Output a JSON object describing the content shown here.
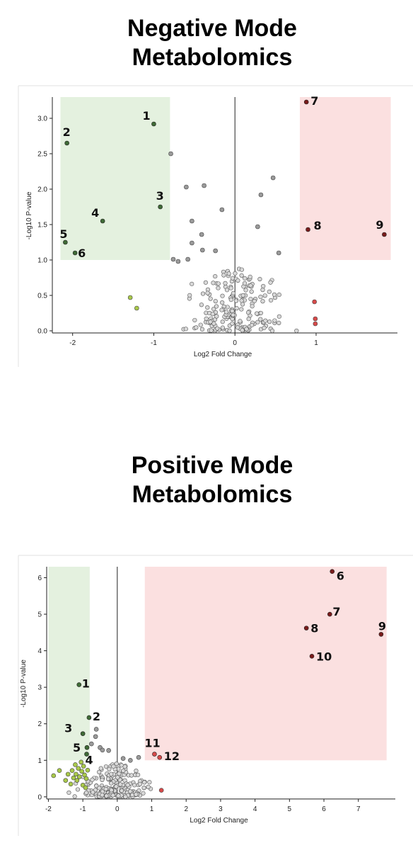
{
  "colors": {
    "down_region": "#e4f1df",
    "up_region": "#fbe0e0",
    "down_sig": "#3f6b36",
    "down_nonsig": "#a9c94a",
    "up_sig": "#7a1b1b",
    "up_nonsig": "#d84a4a",
    "nonsig": "#d8d8d8",
    "nonsig_mid": "#9a9a9a",
    "outline": "#333333"
  },
  "chart_data": [
    {
      "type": "scatter",
      "title": "Negative Mode Metabolomics",
      "xlabel": "Log2 Fold Change",
      "ylabel": "-Log10 P-value",
      "xlim": [
        -2.25,
        1.95
      ],
      "ylim": [
        -0.05,
        3.3
      ],
      "xticks": [
        -2,
        -1,
        0,
        1
      ],
      "yticks": [
        0.0,
        0.5,
        1.0,
        1.5,
        2.0,
        2.5,
        3.0
      ],
      "ytick_labels": [
        "0.0",
        "0.5",
        "1.0",
        "1.5",
        "2.0",
        "2.5",
        "3.0"
      ],
      "grid": false,
      "regions": [
        {
          "name": "down",
          "x": [
            -2.15,
            -0.8
          ],
          "y": [
            1.0,
            3.3
          ]
        },
        {
          "name": "up",
          "x": [
            0.8,
            1.92
          ],
          "y": [
            1.0,
            3.3
          ]
        }
      ],
      "labeled_points": [
        {
          "label": "1",
          "x": -1.0,
          "y": 2.92,
          "group": "down_sig"
        },
        {
          "label": "2",
          "x": -2.07,
          "y": 2.65,
          "group": "down_sig"
        },
        {
          "label": "3",
          "x": -0.92,
          "y": 1.75,
          "group": "down_sig"
        },
        {
          "label": "4",
          "x": -1.63,
          "y": 1.55,
          "group": "down_sig"
        },
        {
          "label": "5",
          "x": -2.09,
          "y": 1.25,
          "group": "down_sig"
        },
        {
          "label": "6",
          "x": -1.97,
          "y": 1.1,
          "group": "down_sig"
        },
        {
          "label": "7",
          "x": 0.88,
          "y": 3.23,
          "group": "up_sig"
        },
        {
          "label": "8",
          "x": 0.9,
          "y": 1.43,
          "group": "up_sig"
        },
        {
          "label": "9",
          "x": 1.84,
          "y": 1.36,
          "group": "up_sig"
        }
      ],
      "other_points": [
        {
          "x": -1.29,
          "y": 0.47,
          "group": "down_nonsig"
        },
        {
          "x": -1.21,
          "y": 0.32,
          "group": "down_nonsig"
        },
        {
          "x": 0.98,
          "y": 0.41,
          "group": "up_nonsig"
        },
        {
          "x": 0.99,
          "y": 0.17,
          "group": "up_nonsig"
        },
        {
          "x": 0.99,
          "y": 0.1,
          "group": "up_nonsig"
        },
        {
          "x": -0.79,
          "y": 2.5,
          "group": "nonsig_mid"
        },
        {
          "x": -0.6,
          "y": 2.03,
          "group": "nonsig_mid"
        },
        {
          "x": -0.38,
          "y": 2.05,
          "group": "nonsig_mid"
        },
        {
          "x": -0.16,
          "y": 1.71,
          "group": "nonsig_mid"
        },
        {
          "x": 0.47,
          "y": 2.16,
          "group": "nonsig_mid"
        },
        {
          "x": 0.32,
          "y": 1.92,
          "group": "nonsig_mid"
        },
        {
          "x": 0.28,
          "y": 1.47,
          "group": "nonsig_mid"
        },
        {
          "x": 0.54,
          "y": 1.1,
          "group": "nonsig_mid"
        },
        {
          "x": -0.53,
          "y": 1.55,
          "group": "nonsig_mid"
        },
        {
          "x": -0.41,
          "y": 1.36,
          "group": "nonsig_mid"
        },
        {
          "x": -0.4,
          "y": 1.14,
          "group": "nonsig_mid"
        },
        {
          "x": -0.24,
          "y": 1.13,
          "group": "nonsig_mid"
        },
        {
          "x": -0.53,
          "y": 1.24,
          "group": "nonsig_mid"
        },
        {
          "x": -0.76,
          "y": 1.01,
          "group": "nonsig_mid"
        },
        {
          "x": -0.7,
          "y": 0.98,
          "group": "nonsig_mid"
        },
        {
          "x": -0.58,
          "y": 1.01,
          "group": "nonsig_mid"
        }
      ]
    },
    {
      "type": "scatter",
      "title": "Positive Mode Metabolomics",
      "xlabel": "Log2 Fold Change",
      "ylabel": "-Log10 P-value",
      "xlim": [
        -2.05,
        7.95
      ],
      "ylim": [
        -0.1,
        6.3
      ],
      "xticks": [
        -2,
        -1,
        0,
        1,
        2,
        3,
        4,
        5,
        6,
        7
      ],
      "yticks": [
        0,
        1,
        2,
        3,
        4,
        5,
        6
      ],
      "ytick_labels": [
        "0",
        "1",
        "2",
        "3",
        "4",
        "5",
        "6"
      ],
      "grid": false,
      "regions": [
        {
          "name": "down",
          "x": [
            -2.0,
            -0.8
          ],
          "y": [
            1.0,
            6.3
          ]
        },
        {
          "name": "up",
          "x": [
            0.8,
            7.82
          ],
          "y": [
            1.0,
            6.3
          ]
        }
      ],
      "labeled_points": [
        {
          "label": "1",
          "x": -1.11,
          "y": 3.07,
          "group": "down_sig"
        },
        {
          "label": "2",
          "x": -0.82,
          "y": 2.17,
          "group": "down_sig"
        },
        {
          "label": "3",
          "x": -1.0,
          "y": 1.73,
          "group": "down_sig"
        },
        {
          "label": "4",
          "x": -0.89,
          "y": 1.17,
          "group": "down_sig"
        },
        {
          "label": "5",
          "x": -0.88,
          "y": 1.35,
          "group": "down_sig"
        },
        {
          "label": "6",
          "x": 6.24,
          "y": 6.17,
          "group": "up_sig"
        },
        {
          "label": "7",
          "x": 6.17,
          "y": 5.0,
          "group": "up_sig"
        },
        {
          "label": "8",
          "x": 5.49,
          "y": 4.62,
          "group": "up_sig"
        },
        {
          "label": "9",
          "x": 7.66,
          "y": 4.45,
          "group": "up_sig"
        },
        {
          "label": "10",
          "x": 5.65,
          "y": 3.85,
          "group": "up_sig"
        },
        {
          "label": "11",
          "x": 1.08,
          "y": 1.17,
          "group": "up_nonsig"
        },
        {
          "label": "12",
          "x": 1.23,
          "y": 1.08,
          "group": "up_nonsig"
        }
      ],
      "other_points": [
        {
          "x": 1.28,
          "y": 0.18,
          "group": "up_nonsig"
        },
        {
          "x": -0.61,
          "y": 1.85,
          "group": "nonsig_mid"
        },
        {
          "x": -0.63,
          "y": 1.65,
          "group": "nonsig_mid"
        },
        {
          "x": -0.75,
          "y": 1.45,
          "group": "nonsig_mid"
        },
        {
          "x": -0.5,
          "y": 1.35,
          "group": "nonsig_mid"
        },
        {
          "x": -0.43,
          "y": 1.28,
          "group": "nonsig_mid"
        },
        {
          "x": -0.25,
          "y": 1.27,
          "group": "nonsig_mid"
        },
        {
          "x": 0.17,
          "y": 1.05,
          "group": "nonsig_mid"
        },
        {
          "x": 0.38,
          "y": 1.0,
          "group": "nonsig_mid"
        },
        {
          "x": 0.62,
          "y": 1.08,
          "group": "nonsig_mid"
        },
        {
          "x": -1.85,
          "y": 0.58,
          "group": "down_nonsig"
        },
        {
          "x": -1.68,
          "y": 0.72,
          "group": "down_nonsig"
        },
        {
          "x": -1.5,
          "y": 0.45,
          "group": "down_nonsig"
        },
        {
          "x": -1.43,
          "y": 0.62,
          "group": "down_nonsig"
        },
        {
          "x": -1.35,
          "y": 0.35,
          "group": "down_nonsig"
        },
        {
          "x": -1.31,
          "y": 0.72,
          "group": "down_nonsig"
        },
        {
          "x": -1.27,
          "y": 0.52,
          "group": "down_nonsig"
        },
        {
          "x": -1.22,
          "y": 0.88,
          "group": "down_nonsig"
        },
        {
          "x": -1.2,
          "y": 0.62,
          "group": "down_nonsig"
        },
        {
          "x": -1.17,
          "y": 0.45,
          "group": "down_nonsig"
        },
        {
          "x": -1.13,
          "y": 0.78,
          "group": "down_nonsig"
        },
        {
          "x": -1.1,
          "y": 0.55,
          "group": "down_nonsig"
        },
        {
          "x": -1.05,
          "y": 0.95,
          "group": "down_nonsig"
        },
        {
          "x": -1.03,
          "y": 0.7,
          "group": "down_nonsig"
        },
        {
          "x": -1.0,
          "y": 0.32,
          "group": "down_nonsig"
        },
        {
          "x": -0.98,
          "y": 0.84,
          "group": "down_nonsig"
        },
        {
          "x": -0.95,
          "y": 0.6,
          "group": "down_nonsig"
        },
        {
          "x": -0.92,
          "y": 0.25,
          "group": "down_nonsig"
        },
        {
          "x": -0.9,
          "y": 0.5,
          "group": "down_nonsig"
        },
        {
          "x": -0.86,
          "y": 0.73,
          "group": "down_nonsig"
        }
      ]
    }
  ]
}
